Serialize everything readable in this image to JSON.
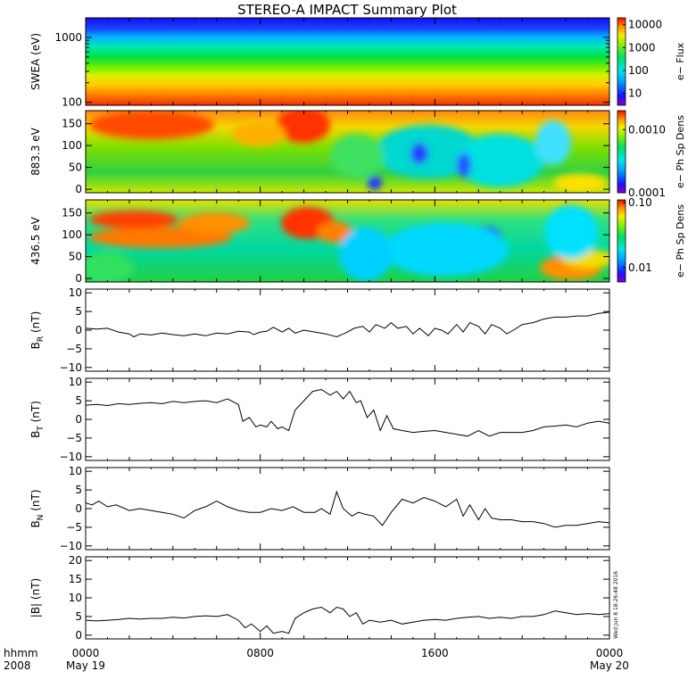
{
  "chart_data": {
    "type": "multi-panel",
    "title": "STEREO-A IMPACT Summary Plot",
    "x_axis": {
      "corner_labels": [
        "hhmm",
        "2008"
      ],
      "tick_labels": [
        {
          "hhmm": "0000",
          "date": "May 19"
        },
        {
          "hhmm": "0800",
          "date": ""
        },
        {
          "hhmm": "1600",
          "date": ""
        },
        {
          "hhmm": "0000",
          "date": "May 20"
        }
      ],
      "range_hours": [
        0,
        24
      ],
      "tick_hours": [
        0,
        8,
        16,
        24
      ]
    },
    "stamp": "Wed Jun  8 18:26:48 2016",
    "panels": [
      {
        "kind": "spectrogram",
        "ylabel": "SWEA (eV)",
        "yscale": "log",
        "ylim": [
          90,
          2000
        ],
        "yticks": [
          100,
          1000
        ],
        "yticklabels": [
          "100",
          "1000"
        ],
        "colorbar": {
          "label": "e− Flux",
          "scale": "log",
          "range": [
            3,
            20000
          ],
          "ticks": [
            10,
            100,
            1000,
            10000
          ],
          "ticklabels": [
            "10",
            "100",
            "1000",
            "10000"
          ]
        }
      },
      {
        "kind": "spectrogram",
        "ylabel": "883.3 eV",
        "ylim": [
          -8,
          180
        ],
        "yticks": [
          0,
          50,
          100,
          150
        ],
        "yticklabels": [
          "0",
          "50",
          "100",
          "150"
        ],
        "colorbar": {
          "label": "e− Ph Sp Dens",
          "scale": "log",
          "range": [
            0.0001,
            0.002
          ],
          "ticks": [
            0.0001,
            0.001
          ],
          "ticklabels": [
            "0.0001",
            "0.0010"
          ]
        }
      },
      {
        "kind": "spectrogram",
        "ylabel": "436.5 eV",
        "ylim": [
          -8,
          180
        ],
        "yticks": [
          0,
          50,
          100,
          150
        ],
        "yticklabels": [
          "0",
          "50",
          "100",
          "150"
        ],
        "colorbar": {
          "label": "e− Ph Sp Dens",
          "scale": "log",
          "range": [
            0.006,
            0.11
          ],
          "ticks": [
            0.01,
            0.1
          ],
          "ticklabels": [
            "0.01",
            "0.10"
          ]
        }
      },
      {
        "kind": "line",
        "ylabel": {
          "main": "B",
          "sub": "R",
          "unit": " (nT)"
        },
        "ylim": [
          -11,
          11
        ],
        "yticks": [
          -10,
          -5,
          0,
          5,
          10
        ],
        "yticklabels": [
          "−10",
          "−5",
          "0",
          "5",
          "10"
        ],
        "x": [
          0,
          0.5,
          1,
          1.5,
          2,
          2.2,
          2.5,
          3,
          3.5,
          4,
          4.5,
          5,
          5.5,
          6,
          6.5,
          7,
          7.5,
          7.7,
          8,
          8.3,
          8.6,
          9,
          9.3,
          9.6,
          10,
          10.5,
          11,
          11.5,
          12,
          12.3,
          12.7,
          13,
          13.3,
          13.7,
          14,
          14.3,
          14.7,
          15,
          15.3,
          15.7,
          16,
          16.3,
          16.6,
          17,
          17.3,
          17.6,
          18,
          18.3,
          18.6,
          19,
          19.3,
          19.6,
          20,
          20.5,
          21,
          21.5,
          22,
          22.5,
          23,
          23.5,
          24
        ],
        "y": [
          0.5,
          0.3,
          0.5,
          -0.5,
          -1,
          -1.8,
          -1,
          -1.3,
          -0.8,
          -1.2,
          -1.5,
          -1,
          -1.5,
          -0.8,
          -1,
          -0.3,
          -0.5,
          -1.2,
          -0.5,
          -0.3,
          0.8,
          -0.5,
          0.5,
          -0.8,
          0,
          -0.5,
          -1,
          -1.8,
          -0.5,
          0.5,
          1,
          -0.5,
          1.5,
          0.5,
          2,
          0.5,
          1,
          -1,
          0.5,
          -1.5,
          0.5,
          0,
          -1,
          1.5,
          -0.5,
          2,
          1,
          -1,
          1.5,
          0.5,
          -1,
          0,
          1.5,
          2,
          3,
          3.5,
          3.5,
          3.8,
          3.8,
          4.5,
          4.8
        ]
      },
      {
        "kind": "line",
        "ylabel": {
          "main": "B",
          "sub": "T",
          "unit": " (nT)"
        },
        "ylim": [
          -11,
          11
        ],
        "yticks": [
          -10,
          -5,
          0,
          5,
          10
        ],
        "yticklabels": [
          "−10",
          "−5",
          "0",
          "5",
          "10"
        ],
        "x": [
          0,
          0.5,
          1,
          1.5,
          2,
          2.5,
          3,
          3.5,
          4,
          4.5,
          5,
          5.5,
          6,
          6.5,
          7,
          7.2,
          7.5,
          7.8,
          8,
          8.3,
          8.5,
          8.8,
          9,
          9.3,
          9.6,
          10,
          10.4,
          10.8,
          11.2,
          11.5,
          11.8,
          12.1,
          12.4,
          12.6,
          12.9,
          13.2,
          13.5,
          13.8,
          14.1,
          14.5,
          15,
          15.5,
          16,
          16.5,
          17,
          17.5,
          18,
          18.5,
          19,
          19.5,
          20,
          20.5,
          21,
          21.5,
          22,
          22.5,
          23,
          23.5,
          24
        ],
        "y": [
          3.8,
          4,
          3.7,
          4.2,
          4,
          4.3,
          4.5,
          4.2,
          4.8,
          4.5,
          4.8,
          5,
          4.5,
          5.5,
          4,
          -0.5,
          0.5,
          -2,
          -1.5,
          -2,
          -0.5,
          -2.5,
          -2,
          -3,
          2.5,
          5,
          7.5,
          8,
          6.5,
          7.5,
          5.5,
          7.5,
          4.5,
          5,
          0.5,
          2.5,
          -3,
          1,
          -2.5,
          -3,
          -3.5,
          -3.2,
          -3,
          -3.5,
          -4,
          -4.5,
          -3,
          -4.5,
          -3.5,
          -3.5,
          -3.5,
          -3,
          -2,
          -1.8,
          -1.5,
          -2,
          -1,
          -0.5,
          -1
        ]
      },
      {
        "kind": "line",
        "ylabel": {
          "main": "B",
          "sub": "N",
          "unit": " (nT)"
        },
        "ylim": [
          -11,
          11
        ],
        "yticks": [
          -10,
          -5,
          0,
          5,
          10
        ],
        "yticklabels": [
          "−10",
          "−5",
          "0",
          "5",
          "10"
        ],
        "x": [
          0,
          0.3,
          0.6,
          1,
          1.4,
          2,
          2.5,
          3,
          3.5,
          4,
          4.5,
          5,
          5.5,
          6,
          6.5,
          7,
          7.5,
          8,
          8.5,
          9,
          9.5,
          10,
          10.5,
          10.8,
          11.2,
          11.5,
          11.8,
          12.2,
          12.5,
          12.8,
          13.2,
          13.6,
          14,
          14.5,
          15,
          15.5,
          16,
          16.5,
          17,
          17.3,
          17.6,
          18,
          18.3,
          18.6,
          19,
          19.5,
          20,
          20.5,
          21,
          21.5,
          22,
          22.5,
          23,
          23.5,
          24
        ],
        "y": [
          1.5,
          1,
          2,
          0.5,
          1,
          -0.5,
          0,
          -0.5,
          -1,
          -1.5,
          -2.5,
          -0.5,
          0.5,
          2,
          0.5,
          -0.5,
          -1,
          -1,
          0,
          -0.5,
          0.5,
          -1,
          -1,
          0,
          -1.5,
          4.5,
          0,
          -2,
          -1,
          -1.5,
          -2,
          -4.5,
          -1,
          2.5,
          1.5,
          3,
          2,
          0.5,
          2.5,
          -2,
          1,
          -3,
          0,
          -2.5,
          -3,
          -3,
          -3.5,
          -3.5,
          -4,
          -5,
          -4.5,
          -4.5,
          -4,
          -3.5,
          -3.8
        ]
      },
      {
        "kind": "line",
        "ylabel": {
          "main": "|B|",
          "sub": "",
          "unit": " (nT)"
        },
        "ylim": [
          -1,
          21
        ],
        "yticks": [
          0,
          5,
          10,
          15,
          20
        ],
        "yticklabels": [
          "0",
          "5",
          "10",
          "15",
          "20"
        ],
        "x": [
          0,
          0.5,
          1,
          1.5,
          2,
          2.5,
          3,
          3.5,
          4,
          4.5,
          5,
          5.5,
          6,
          6.5,
          7,
          7.3,
          7.6,
          8,
          8.3,
          8.6,
          9,
          9.3,
          9.6,
          10,
          10.4,
          10.8,
          11.2,
          11.5,
          11.8,
          12.1,
          12.4,
          12.7,
          13,
          13.5,
          14,
          14.5,
          15,
          15.5,
          16,
          16.5,
          17,
          17.5,
          18,
          18.5,
          19,
          19.5,
          20,
          20.5,
          21,
          21.5,
          22,
          22.5,
          23,
          23.5,
          24
        ],
        "y": [
          4,
          3.8,
          4,
          4.2,
          4.5,
          4.3,
          4.5,
          4.5,
          4.8,
          4.6,
          5,
          5.2,
          5,
          5.5,
          4,
          2,
          3,
          1,
          2.5,
          0.5,
          1,
          0.5,
          4.5,
          6,
          7,
          7.5,
          6,
          7.5,
          7,
          5,
          6,
          3,
          4,
          3.5,
          4,
          3,
          3.5,
          4,
          4.2,
          4,
          4.5,
          4.8,
          5,
          4.5,
          4.8,
          4.5,
          5,
          5,
          5.5,
          6.5,
          6,
          5.5,
          5.8,
          5.5,
          5.8
        ]
      }
    ]
  }
}
